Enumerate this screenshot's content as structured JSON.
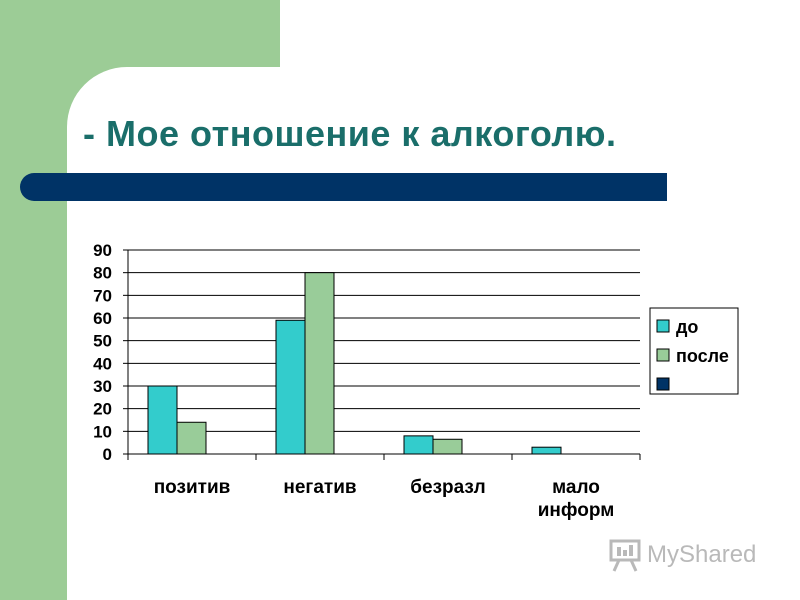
{
  "slide": {
    "title": "- Мое отношение к алкоголю.",
    "colors": {
      "background_green": "#9ccc96",
      "title_text": "#1a6e6a",
      "title_bar": "#003366"
    }
  },
  "chart_data": {
    "type": "bar",
    "categories": [
      [
        "позитив"
      ],
      [
        "негатив"
      ],
      [
        "безразл"
      ],
      [
        "мало",
        "информ"
      ]
    ],
    "series": [
      {
        "name": "до",
        "color": "#33cccc",
        "values": [
          30,
          59,
          8,
          3
        ]
      },
      {
        "name": "после",
        "color": "#99cc99",
        "values": [
          14,
          80,
          6.5,
          0
        ]
      },
      {
        "name": "",
        "color": "#003366",
        "values": [
          0,
          0,
          0,
          0
        ]
      }
    ],
    "ylim": [
      0,
      90
    ],
    "yticks": [
      0,
      10,
      20,
      30,
      40,
      50,
      60,
      70,
      80,
      90
    ],
    "grid": true,
    "legend": "right"
  },
  "watermark": {
    "text": "MyShared",
    "icon": "presentation-board-icon"
  }
}
